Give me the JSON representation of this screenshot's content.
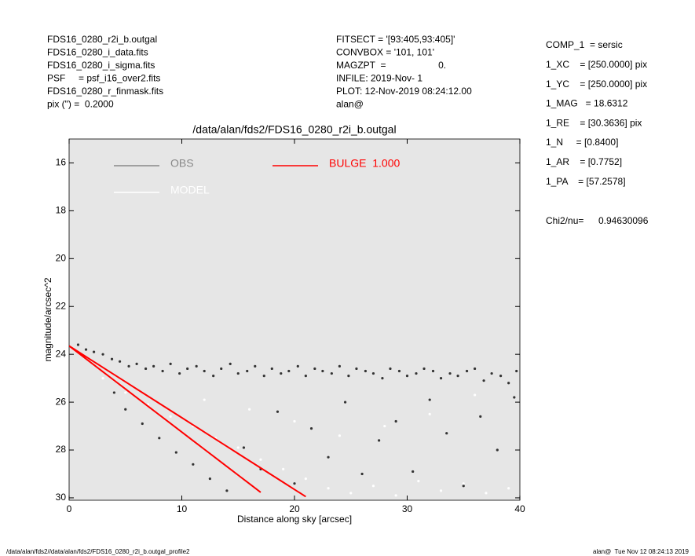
{
  "chart_data": {
    "type": "scatter",
    "title": "/data/alan/fds2/FDS16_0280_r2i_b.outgal",
    "x_label": "Distance along sky [arcsec]",
    "y_label": "magnitude/arcsec^2",
    "xlim": [
      0,
      40
    ],
    "xticks": [
      0,
      10,
      20,
      30,
      40
    ],
    "ylim": [
      30.1,
      15
    ],
    "yticks": [
      16,
      18,
      20,
      22,
      24,
      26,
      28,
      30
    ],
    "y_inverted": true,
    "background": "#e6e6e6",
    "info_left": [
      "FDS16_0280_r2i_b.outgal",
      "FDS16_0280_i_data.fits",
      "FDS16_0280_i_sigma.fits",
      "PSF     = psf_i16_over2.fits",
      "FDS16_0280_r_finmask.fits",
      "pix (\") =  0.2000"
    ],
    "info_mid": [
      "FITSECT = '[93:405,93:405]'",
      "CONVBOX = '101, 101'",
      "MAGZPT  =                    0.",
      "INFILE: 2019-Nov- 1",
      "PLOT: 12-Nov-2019 08:24:12.00",
      "alan@"
    ],
    "info_right": [
      "COMP_1  = sersic",
      "1_XC    = [250.0000] pix",
      "1_YC    = [250.0000] pix",
      "1_MAG   = 18.6312",
      "1_RE    = [30.3636] pix",
      "1_N     = [0.8400]",
      "1_AR    = [0.7752]",
      "1_PA    = [57.2578]"
    ],
    "chi_label": "Chi2/nu=",
    "chi_value": "0.94630096",
    "footer_left": "/data/alan/fds2//data/alan/fds2/FDS16_0280_r2i_b.outgal_profile2",
    "footer_right": "alan@  Tue Nov 12 08:24:13 2019",
    "series": [
      {
        "name": "OBS",
        "color": "#333333",
        "legend_color": "#888888",
        "kind": "points",
        "x": [
          0.8,
          1.5,
          2.2,
          3,
          3.8,
          4.5,
          5.3,
          6,
          6.8,
          7.5,
          8.3,
          9,
          9.8,
          10.5,
          11.3,
          12,
          12.8,
          13.5,
          14.3,
          15,
          15.8,
          16.5,
          17.3,
          18,
          18.8,
          19.5,
          20.3,
          21,
          21.8,
          22.5,
          23.3,
          24,
          24.8,
          25.5,
          26.3,
          27,
          27.8,
          28.5,
          29.3,
          30,
          30.8,
          31.5,
          32.3,
          33,
          33.8,
          34.5,
          35.3,
          36,
          36.8,
          37.5,
          38.3,
          39,
          39.7,
          4,
          5,
          6.5,
          8,
          9.5,
          11,
          12.5,
          14,
          15.5,
          17,
          18.5,
          20,
          21.5,
          23,
          24.5,
          26,
          27.5,
          29,
          30.5,
          32,
          33.5,
          35,
          36.5,
          38,
          39.5
        ],
        "values": [
          23.6,
          23.8,
          23.9,
          24.0,
          24.2,
          24.3,
          24.5,
          24.4,
          24.6,
          24.5,
          24.7,
          24.4,
          24.8,
          24.6,
          24.5,
          24.7,
          24.9,
          24.6,
          24.4,
          24.8,
          24.7,
          24.5,
          24.9,
          24.6,
          24.8,
          24.7,
          24.5,
          24.9,
          24.6,
          24.7,
          24.8,
          24.5,
          24.9,
          24.6,
          24.7,
          24.8,
          25.0,
          24.6,
          24.7,
          24.9,
          24.8,
          24.6,
          24.7,
          25.0,
          24.8,
          24.9,
          24.7,
          24.6,
          25.1,
          24.8,
          24.9,
          25.2,
          24.7,
          25.6,
          26.3,
          26.9,
          27.5,
          28.1,
          28.6,
          29.2,
          29.7,
          27.9,
          28.8,
          26.4,
          29.4,
          27.1,
          28.3,
          26.0,
          29.0,
          27.6,
          26.8,
          28.9,
          25.9,
          27.3,
          29.5,
          26.6,
          28.0,
          25.8
        ]
      },
      {
        "name": "MODEL",
        "color": "#ffffff",
        "legend_color": "#ffffff",
        "kind": "points",
        "x": [
          3,
          5,
          7,
          9,
          11,
          13,
          15,
          17,
          19,
          21,
          23,
          25,
          27,
          29,
          31,
          33,
          35,
          37,
          39,
          12,
          16,
          20,
          24,
          28,
          32,
          36
        ],
        "values": [
          25.0,
          25.6,
          26.1,
          26.6,
          27.0,
          27.5,
          27.9,
          28.4,
          28.8,
          29.2,
          29.6,
          29.8,
          29.5,
          29.9,
          29.3,
          29.7,
          29.4,
          29.8,
          29.6,
          25.9,
          26.3,
          26.8,
          27.4,
          27.0,
          26.5,
          25.7
        ]
      },
      {
        "name": "BULGE  1.000",
        "color": "#ff0000",
        "legend_color": "#ff0000",
        "kind": "line",
        "x": [
          0,
          1,
          2,
          3,
          4,
          5,
          6,
          7,
          8,
          9,
          10,
          11,
          12,
          13,
          14,
          15,
          16,
          17,
          18,
          19,
          20,
          21,
          null,
          0,
          1,
          2,
          3,
          4,
          5,
          6,
          7,
          8,
          9,
          10,
          11,
          12,
          13,
          14,
          15,
          16,
          17
        ],
        "values": [
          23.65,
          23.95,
          24.25,
          24.55,
          24.85,
          25.15,
          25.45,
          25.75,
          26.05,
          26.35,
          26.65,
          26.95,
          27.25,
          27.55,
          27.85,
          28.15,
          28.45,
          28.75,
          29.05,
          29.35,
          29.65,
          29.95,
          null,
          23.65,
          24.01,
          24.37,
          24.73,
          25.09,
          25.45,
          25.81,
          26.17,
          26.53,
          26.89,
          27.25,
          27.61,
          27.97,
          28.33,
          28.69,
          29.05,
          29.41,
          29.77
        ]
      }
    ]
  }
}
